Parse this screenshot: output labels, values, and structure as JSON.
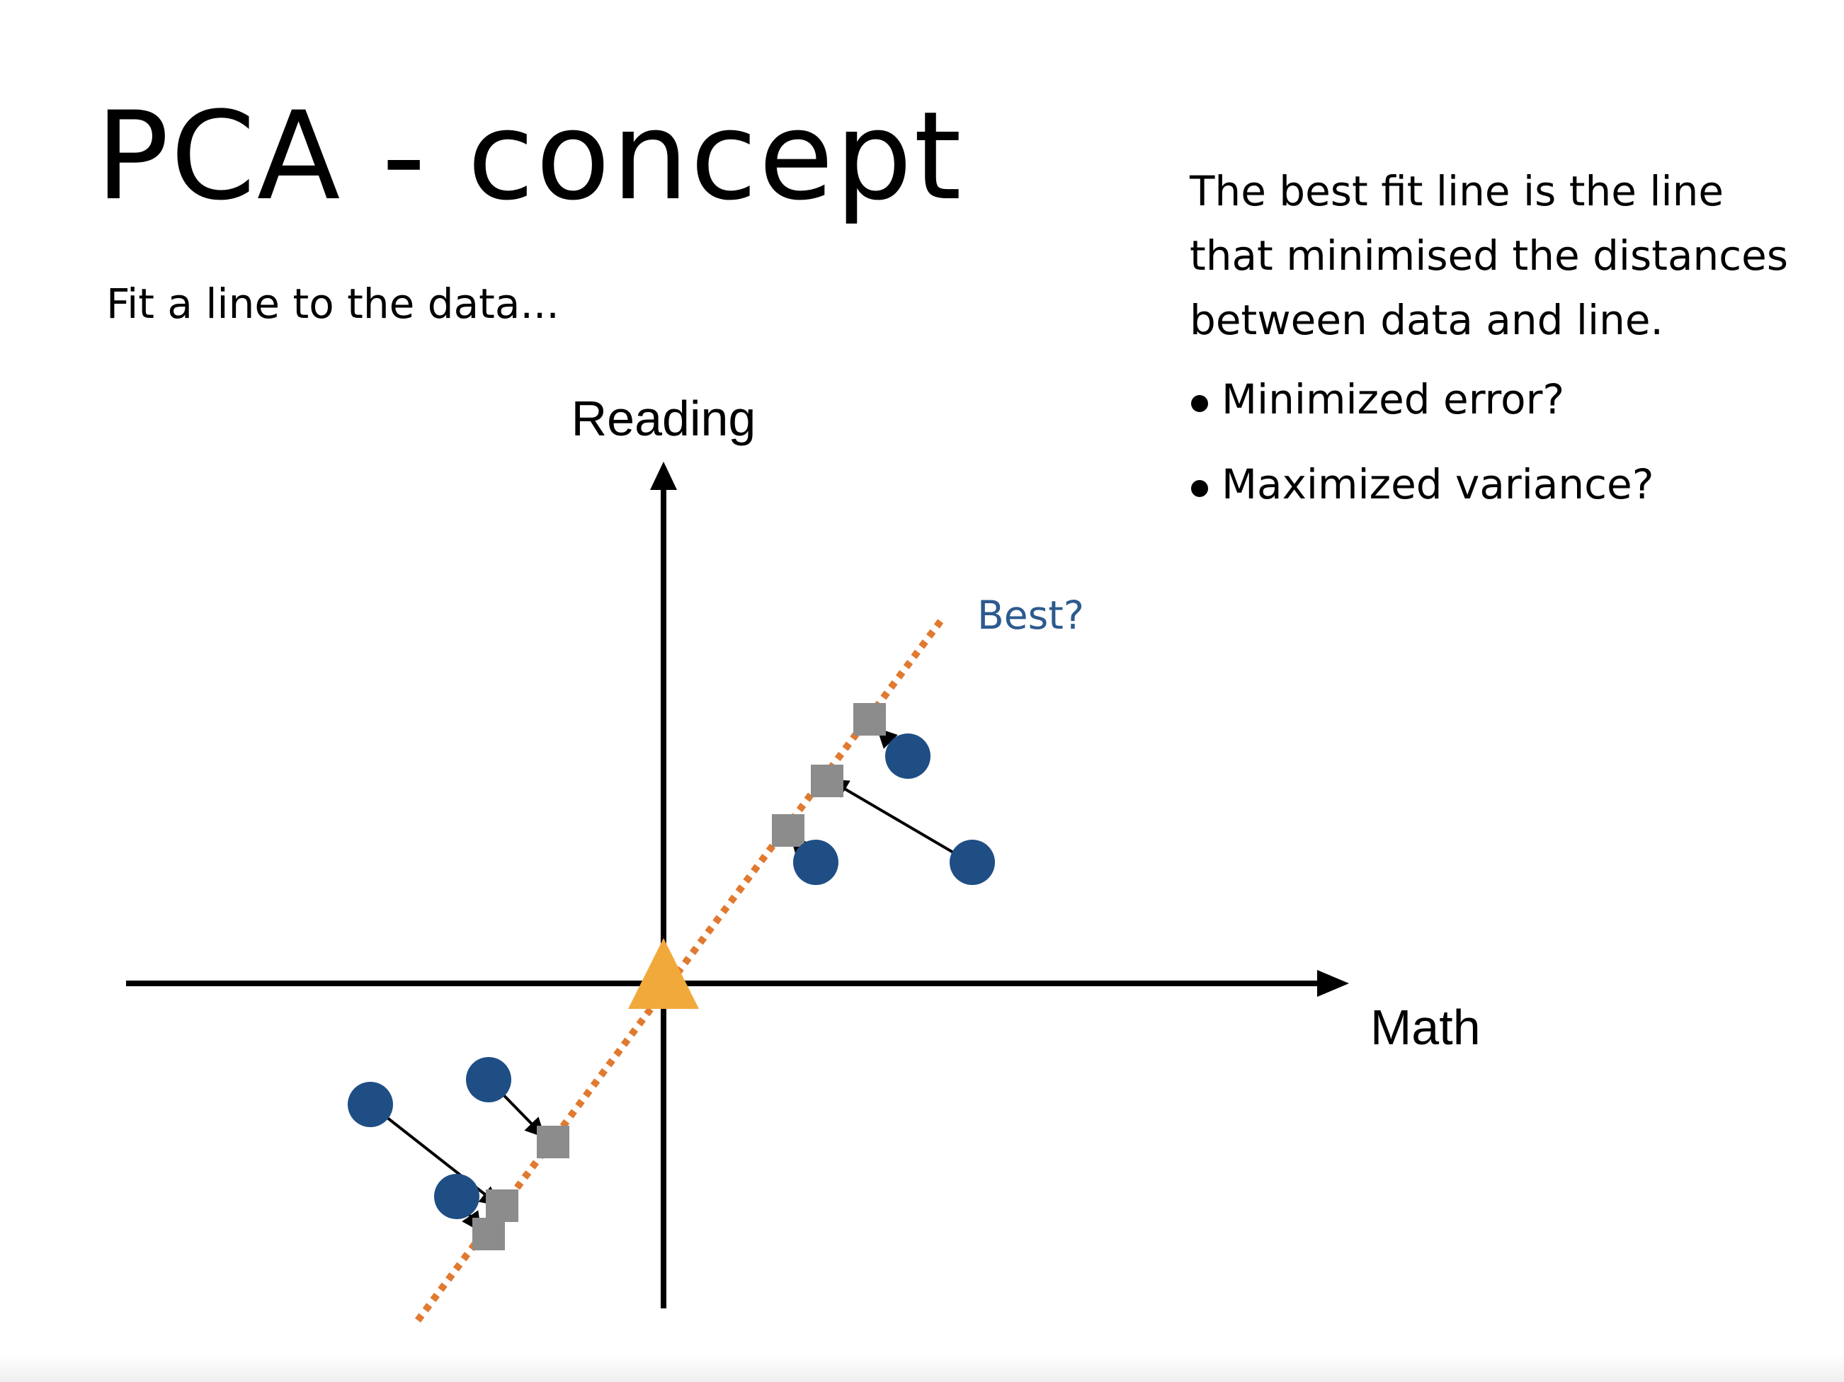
{
  "slide": {
    "title": "PCA - concept",
    "subtitle": "Fit a line to the data...",
    "description_lines": [
      "The best fit line is the line",
      "that minimised the distances",
      "between data and line."
    ],
    "bullets": [
      "Minimized error?",
      "Maximized variance?"
    ]
  },
  "diagram": {
    "y_axis_label": "Reading",
    "x_axis_label": "Math",
    "fit_line_label": "Best?",
    "colors": {
      "axes": "#000000",
      "data_points": "#1f4e85",
      "projections": "#8c8c8c",
      "fit_line": "#e07a30",
      "origin_marker": "#f2a93b",
      "fit_label": "#2d5a8e"
    },
    "legend": "none",
    "grid": false
  }
}
